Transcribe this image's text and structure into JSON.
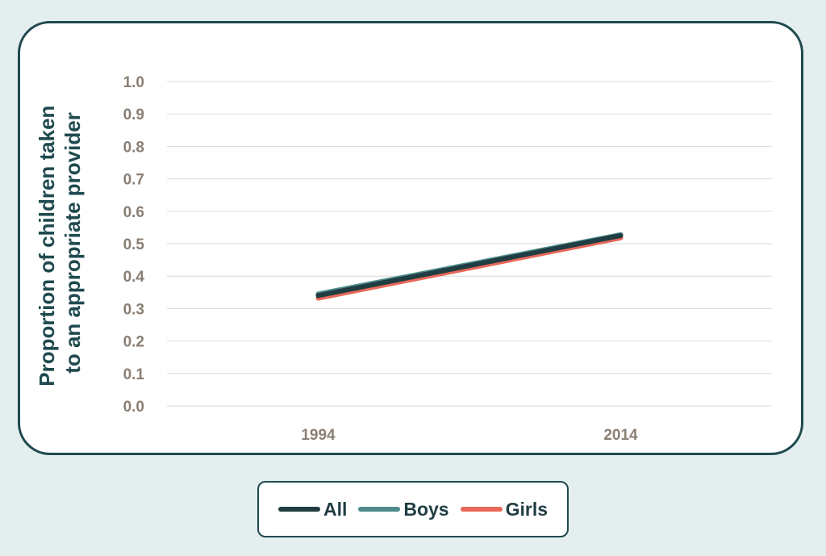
{
  "chart_data": {
    "type": "line",
    "x": [
      "1994",
      "2014"
    ],
    "ylabel": [
      "Proportion of children taken",
      "to an appropriate provider"
    ],
    "ylim": [
      0,
      1.0
    ],
    "yticks": [
      "0.0",
      "0.1",
      "0.2",
      "0.3",
      "0.4",
      "0.5",
      "0.6",
      "0.7",
      "0.8",
      "0.9",
      "1.0"
    ],
    "grid": true,
    "legend_position": "bottom",
    "series": [
      {
        "name": "All",
        "values": [
          0.34,
          0.525
        ],
        "color": "#1f3d42"
      },
      {
        "name": "Boys",
        "values": [
          0.345,
          0.528
        ],
        "color": "#4e8b8a"
      },
      {
        "name": "Girls",
        "values": [
          0.332,
          0.518
        ],
        "color": "#e8685a"
      }
    ]
  }
}
